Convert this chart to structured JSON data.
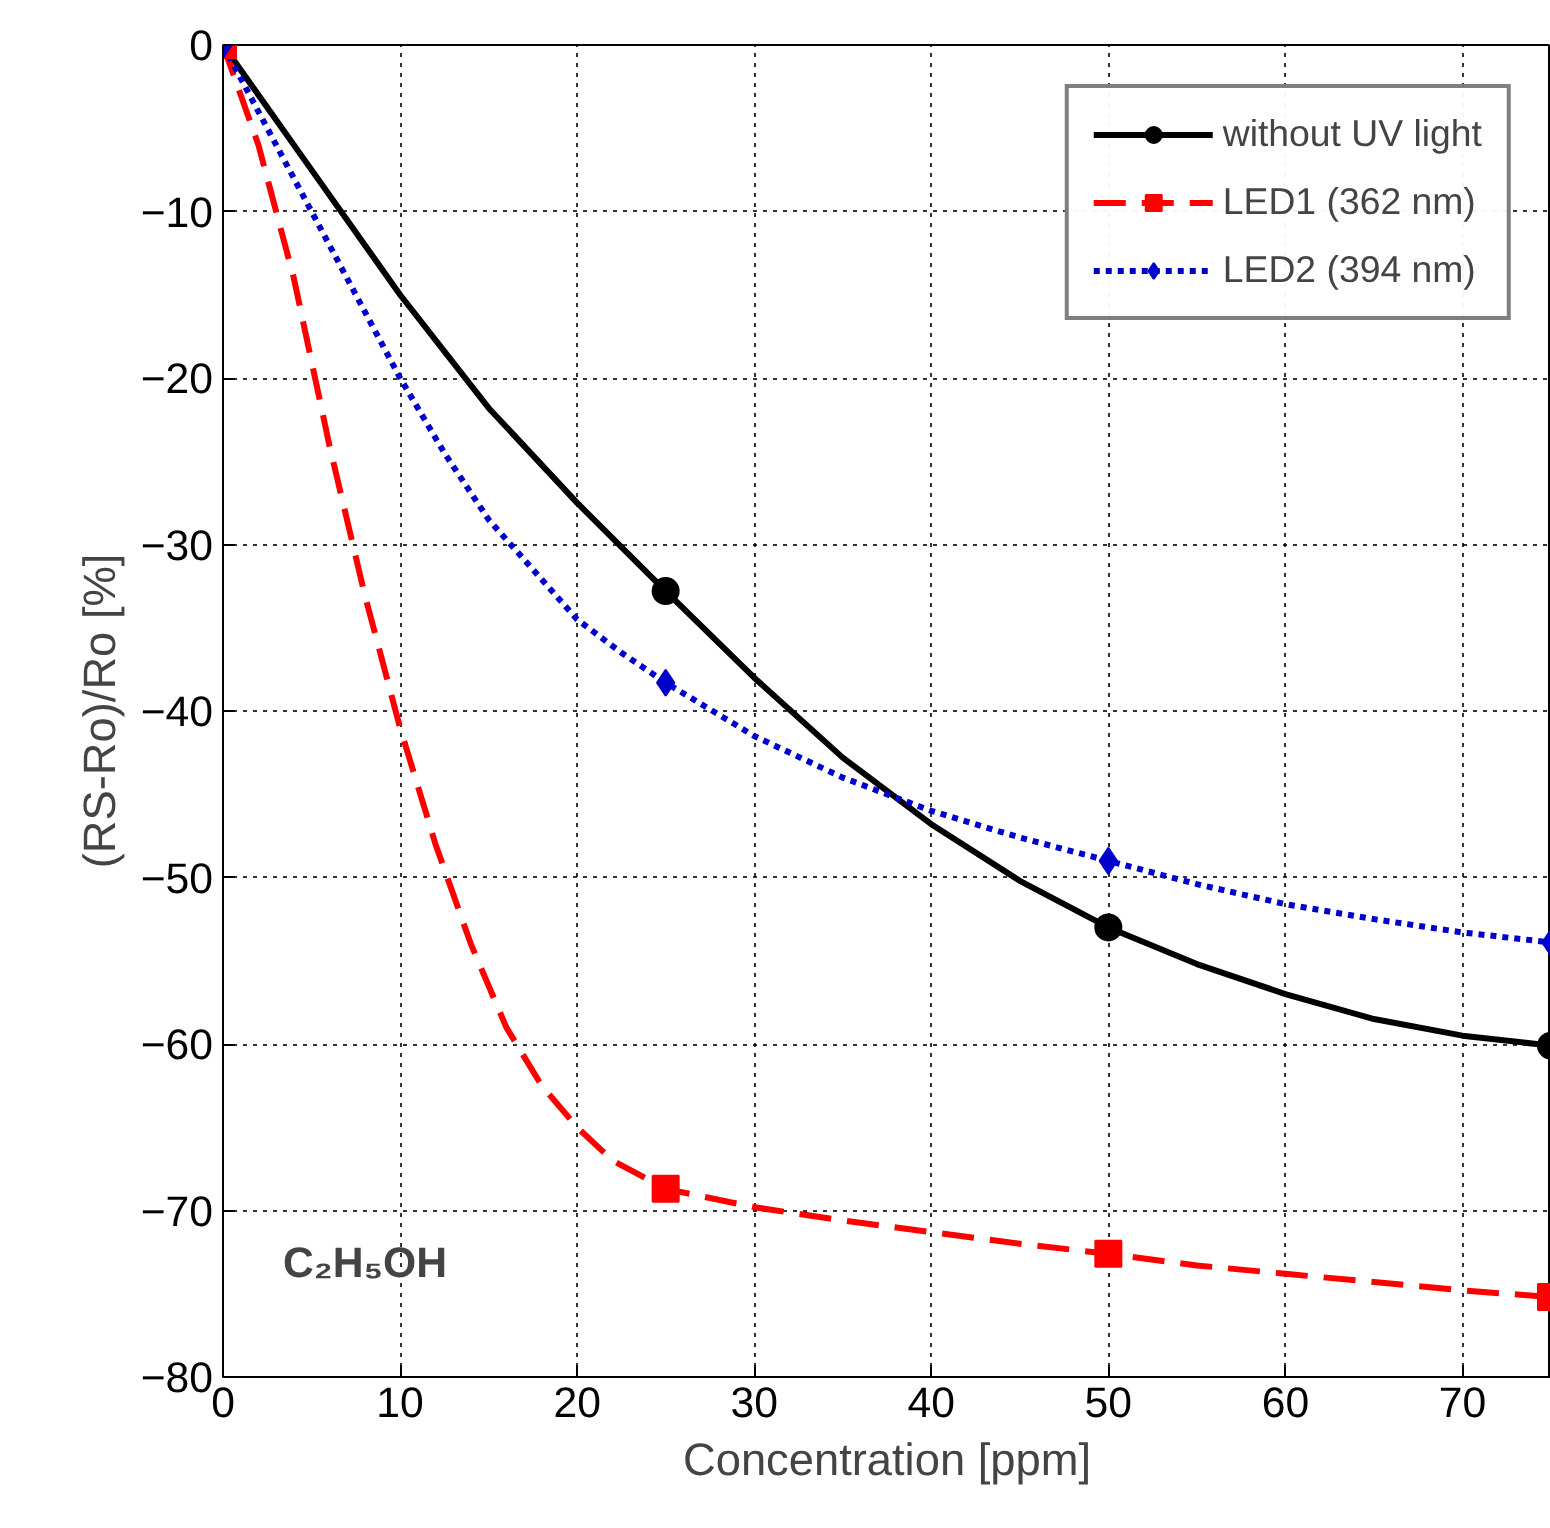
{
  "chart_data": {
    "type": "line",
    "xlabel": "Concentration [ppm]",
    "ylabel": "(RS-Ro)/Ro [%]",
    "series": [
      {
        "name": "without UV light",
        "color": "#000000",
        "marker": "none",
        "line_style": "solid",
        "x": [
          0,
          5,
          10,
          15,
          20,
          25,
          30,
          35,
          40,
          45,
          50,
          55,
          60,
          65,
          70,
          75
        ],
        "values": [
          0,
          -7.5,
          -15,
          -21.8,
          -27.5,
          -32.8,
          -38,
          -42.8,
          -46.8,
          -50.2,
          -53,
          -55.2,
          -57,
          -58.5,
          -59.5,
          -60.1
        ]
      },
      {
        "name": "LED1 (362 nm)",
        "color": "#ff0000",
        "marker": "none",
        "line_style": "dashed",
        "x": [
          0,
          2,
          4,
          6,
          8,
          10,
          12,
          14,
          16,
          18,
          20,
          22,
          25,
          30,
          35,
          40,
          45,
          50,
          55,
          60,
          65,
          70,
          75
        ],
        "values": [
          0,
          -6,
          -14,
          -24,
          -33,
          -41,
          -48,
          -54,
          -59,
          -62.5,
          -65,
          -67,
          -68.7,
          -69.8,
          -70.6,
          -71.3,
          -72,
          -72.6,
          -73.3,
          -73.8,
          -74.3,
          -74.8,
          -75.2
        ]
      },
      {
        "name": "LED2 (394 nm)",
        "color": "#0000cc",
        "marker": "none",
        "line_style": "dotted",
        "x": [
          0,
          2.5,
          5,
          7.5,
          10,
          12.5,
          15,
          17.5,
          20,
          22.5,
          25,
          30,
          35,
          40,
          45,
          50,
          55,
          60,
          65,
          70,
          75
        ],
        "values": [
          0,
          -5,
          -10,
          -15,
          -20,
          -24.5,
          -28.5,
          -31.5,
          -34.5,
          -36.5,
          -38.3,
          -41.5,
          -44,
          -46,
          -47.6,
          -49,
          -50.4,
          -51.6,
          -52.5,
          -53.3,
          -53.9
        ]
      },
      {
        "type": "scatter",
        "color": "#000000",
        "marker": "circle",
        "x": [
          25,
          50,
          75
        ],
        "values": [
          -32.8,
          -53.0,
          -60.1
        ]
      },
      {
        "type": "scatter",
        "color": "#ff0000",
        "marker": "square",
        "x": [
          0,
          25,
          50,
          75
        ],
        "values": [
          0,
          -68.7,
          -72.6,
          -75.2
        ]
      },
      {
        "type": "scatter",
        "color": "#0000cc",
        "marker": "diamond",
        "x": [
          0,
          25,
          50,
          75
        ],
        "values": [
          0,
          -38.3,
          -49.0,
          -53.9
        ]
      }
    ],
    "xlim": [
      0,
      75
    ],
    "xticks": [
      0,
      10,
      20,
      30,
      40,
      50,
      60,
      70
    ],
    "ylim": [
      -80,
      0
    ],
    "yticks": [
      -80,
      -70,
      -60,
      -50,
      -40,
      -30,
      -20,
      -10,
      0
    ],
    "grid": true,
    "legend": "top right",
    "annotations": [
      "C₂H₅OH"
    ]
  }
}
